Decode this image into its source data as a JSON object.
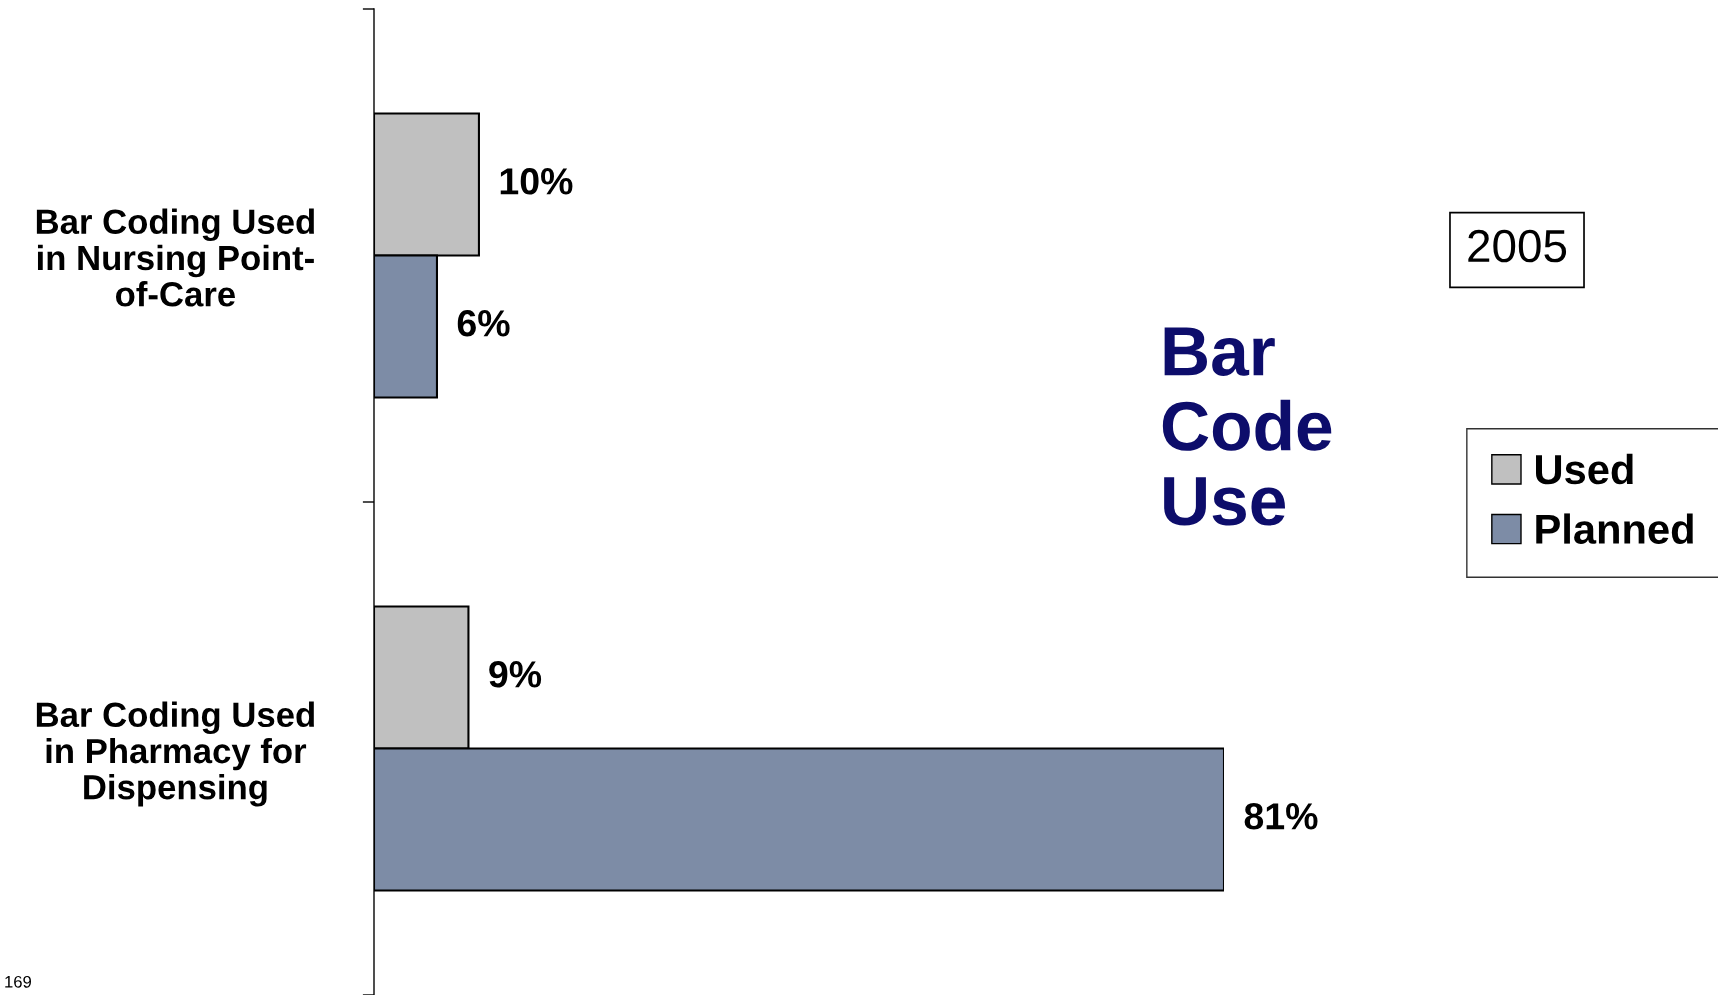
{
  "chart_data": {
    "type": "bar",
    "orientation": "horizontal",
    "title": "Bar Code Use",
    "categories": [
      "Bar Coding Used\nin Nursing Point-\nof-Care",
      "Bar Coding Used\nin Pharmacy for\nDispensing"
    ],
    "series": [
      {
        "name": "Used",
        "color": "#c0c0c0",
        "values": [
          10,
          9
        ],
        "value_labels": [
          "10%",
          "9%"
        ]
      },
      {
        "name": "Planned",
        "color": "#7d8ca6",
        "values": [
          6,
          81
        ],
        "value_labels": [
          "6%",
          "81%"
        ]
      }
    ],
    "annotations": [
      "2005",
      "169"
    ],
    "legend": "right",
    "grid": false
  }
}
